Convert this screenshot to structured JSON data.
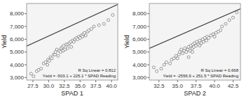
{
  "chart_data": [
    {
      "type": "scatter",
      "xlabel": "SPAD 1",
      "ylabel": "Yield",
      "xlim": [
        26.5,
        41.0
      ],
      "ylim": [
        2800,
        8800
      ],
      "xticks": [
        27.5,
        {
          "value": 30.0,
          "label": "30.0"
        },
        32.5,
        {
          "value": 35.0,
          "label": "35.0"
        },
        37.5,
        {
          "value": 40.0,
          "label": "40.0"
        }
      ],
      "yticks": [
        {
          "value": 3000,
          "label": "3,000"
        },
        {
          "value": 4000,
          "label": "4,000"
        },
        {
          "value": 5000,
          "label": "5,000"
        },
        {
          "value": 6000,
          "label": "6,000"
        },
        {
          "value": 7000,
          "label": "7,000"
        },
        {
          "value": 8000,
          "label": "8,000"
        }
      ],
      "annotations": [
        "R Sq Linear = 0.812",
        "Yield = -503.1 + 225.1 * SPAD Reading"
      ],
      "grid": false,
      "series": [
        {
          "type": "scatter",
          "color": "#777777",
          "x": [
            27.2,
            27.6,
            28.1,
            28.4,
            28.8,
            29.2,
            29.5,
            29.8,
            29.9,
            30.1,
            30.3,
            30.5,
            30.8,
            31.0,
            31.1,
            31.3,
            31.5,
            31.7,
            31.9,
            32.0,
            32.2,
            32.3,
            32.4,
            32.6,
            32.8,
            33.0,
            33.1,
            33.3,
            33.5,
            33.6,
            33.8,
            34.0,
            34.2,
            34.4,
            34.6,
            34.8,
            35.0,
            35.2,
            35.4,
            35.5,
            35.7,
            35.9,
            36.2,
            36.4,
            36.8,
            37.2,
            38.0,
            38.8,
            39.5,
            40.2
          ],
          "values": [
            3300,
            3100,
            3500,
            3600,
            3700,
            4100,
            4200,
            4000,
            4400,
            4300,
            4600,
            4500,
            4800,
            4800,
            5000,
            5200,
            4700,
            5100,
            5000,
            5300,
            5400,
            5100,
            5500,
            5200,
            5600,
            5300,
            5600,
            5700,
            5800,
            5400,
            5900,
            5800,
            6000,
            6100,
            6000,
            6200,
            6100,
            6300,
            6200,
            6400,
            6500,
            6300,
            6600,
            6700,
            6800,
            7000,
            7100,
            7200,
            7500,
            7900
          ]
        },
        {
          "type": "line",
          "color": "#444444",
          "x": [
            26.5,
            41.0
          ],
          "values": [
            5462.05,
            8726.0
          ]
        }
      ]
    },
    {
      "type": "scatter",
      "xlabel": "SPAD 2",
      "ylabel": "Yield",
      "xlim": [
        31.2,
        43.5
      ],
      "ylim": [
        2800,
        8800
      ],
      "xticks": [
        32.5,
        {
          "value": 35.0,
          "label": "35.0"
        },
        37.5,
        {
          "value": 40.0,
          "label": "40.0"
        },
        42.5
      ],
      "yticks": [
        {
          "value": 3000,
          "label": "3,000"
        },
        {
          "value": 4000,
          "label": "4,000"
        },
        {
          "value": 5000,
          "label": "5,000"
        },
        {
          "value": 6000,
          "label": "6,000"
        },
        {
          "value": 7000,
          "label": "7,000"
        },
        {
          "value": 8000,
          "label": "8,000"
        }
      ],
      "annotations": [
        "R Sq Linear = 0.668",
        "Yield = -2556.9 + 251.5 * SPAD Reading"
      ],
      "grid": false,
      "series": [
        {
          "type": "scatter",
          "color": "#777777",
          "x": [
            31.8,
            32.2,
            32.8,
            33.2,
            33.5,
            34.0,
            34.2,
            34.5,
            34.8,
            35.0,
            35.2,
            35.3,
            35.5,
            35.7,
            35.9,
            36.0,
            36.2,
            36.4,
            36.5,
            36.7,
            36.8,
            37.0,
            37.1,
            37.2,
            37.3,
            37.5,
            37.6,
            37.8,
            38.0,
            38.2,
            38.4,
            38.5,
            38.7,
            38.9,
            39.0,
            39.2,
            39.5,
            39.8,
            40.0,
            40.2,
            40.5,
            40.8,
            41.0,
            41.5,
            42.0,
            42.5,
            43.0,
            36.5,
            37.0,
            38.0
          ],
          "values": [
            3800,
            3500,
            3700,
            4000,
            4200,
            4100,
            4400,
            4500,
            4700,
            4500,
            4800,
            5000,
            5200,
            4900,
            5100,
            5300,
            5000,
            5200,
            5400,
            5100,
            5500,
            5300,
            5600,
            5400,
            5700,
            5500,
            5800,
            5600,
            5900,
            5700,
            6000,
            5800,
            6100,
            5900,
            6200,
            6100,
            6300,
            6400,
            6200,
            6500,
            6600,
            6700,
            7000,
            7200,
            7500,
            7700,
            8100,
            4600,
            5000,
            5500
          ]
        },
        {
          "type": "line",
          "color": "#444444",
          "x": [
            31.2,
            43.5
          ],
          "values": [
            5289.9,
            8383.35
          ]
        }
      ]
    }
  ]
}
